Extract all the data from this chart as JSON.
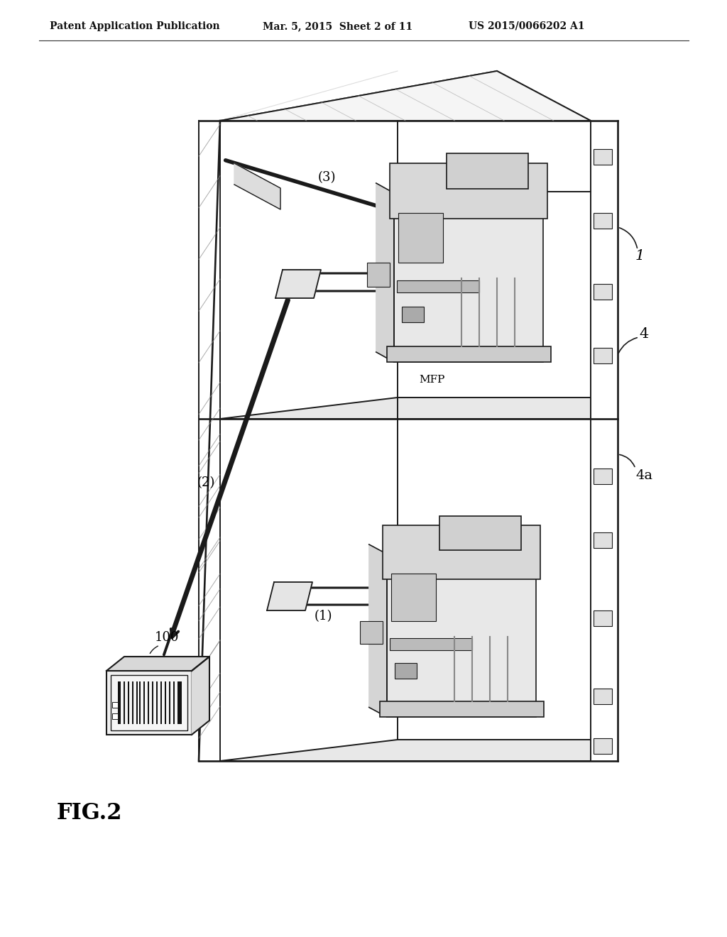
{
  "title_left": "Patent Application Publication",
  "title_mid": "Mar. 5, 2015  Sheet 2 of 11",
  "title_right": "US 2015/0066202 A1",
  "fig_label": "FIG.2",
  "bg_color": "#ffffff",
  "line_color": "#1a1a1a",
  "label_100": "100",
  "label_1": "1",
  "label_4": "4",
  "label_4a": "4a",
  "label_mfp": "MFP",
  "arrow_labels": [
    "(1)",
    "(2)",
    "(3)"
  ]
}
